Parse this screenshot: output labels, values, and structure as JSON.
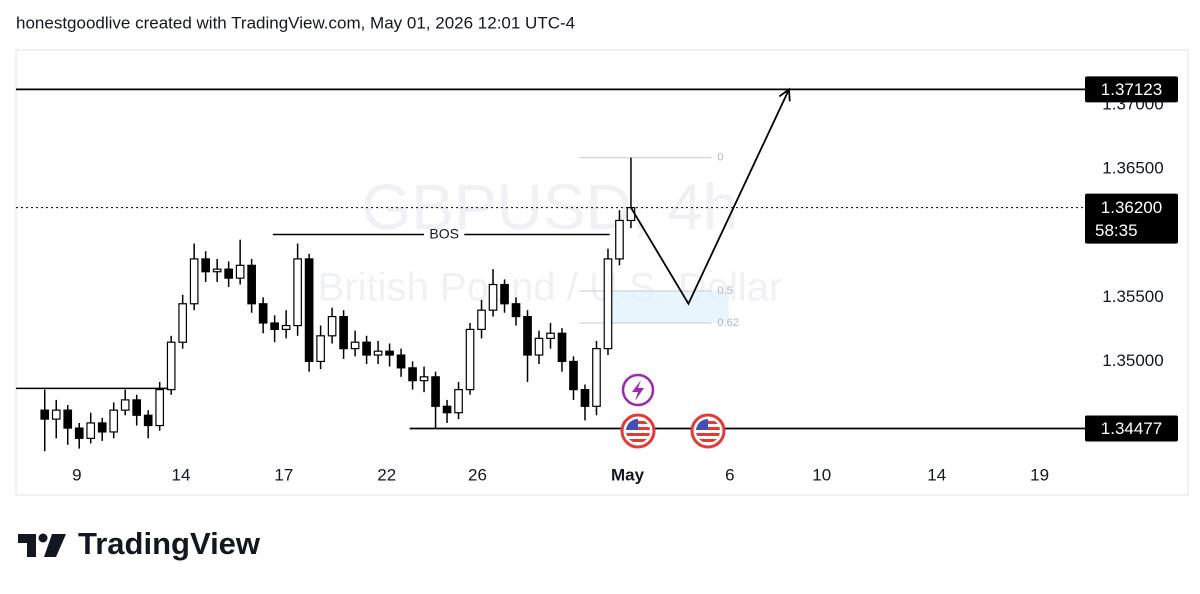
{
  "header": {
    "text": "honestgoodlive created with TradingView.com, May 01, 2026 12:01 UTC-4"
  },
  "footer": {
    "brand": "TradingView"
  },
  "chart_data": {
    "type": "candlestick",
    "watermark": "GBPUSD, 4h",
    "subtitle": "British Pound / U.S. Dollar",
    "up_color": "#ffffff",
    "down_color": "#000000",
    "border_color": "#000000",
    "xlim": [
      0,
      186
    ],
    "xticks": [
      {
        "value": 10.6,
        "label": "9"
      },
      {
        "value": 28.7,
        "label": "14"
      },
      {
        "value": 46.6,
        "label": "17"
      },
      {
        "value": 64.5,
        "label": "22"
      },
      {
        "value": 80.3,
        "label": "26"
      },
      {
        "value": 106.4,
        "label": "May"
      },
      {
        "value": 124.2,
        "label": "6"
      },
      {
        "value": 140.2,
        "label": "10"
      },
      {
        "value": 160.2,
        "label": "14"
      },
      {
        "value": 178.1,
        "label": "19"
      }
    ],
    "ylim": [
      1.3427,
      1.3743
    ],
    "yticks": [
      {
        "value": 1.37,
        "label": "1.37000"
      },
      {
        "value": 1.365,
        "label": "1.36500"
      },
      {
        "value": 1.355,
        "label": "1.35500"
      },
      {
        "value": 1.35,
        "label": "1.35000"
      }
    ],
    "x": [
      5,
      7,
      9,
      11,
      13,
      15,
      17,
      19,
      21,
      23,
      25,
      27,
      29,
      31,
      33,
      35,
      37,
      39,
      41,
      43,
      45,
      47,
      49,
      51,
      53,
      55,
      57,
      59,
      61,
      63,
      65,
      67,
      69,
      71,
      73,
      75,
      77,
      79,
      81,
      83,
      85,
      87,
      89,
      91,
      93,
      95,
      97,
      99,
      101,
      103,
      105,
      107
    ],
    "open": [
      1.3462,
      1.3455,
      1.3462,
      1.3448,
      1.344,
      1.3452,
      1.3445,
      1.3462,
      1.347,
      1.3458,
      1.345,
      1.3478,
      1.3515,
      1.3545,
      1.358,
      1.357,
      1.3572,
      1.3565,
      1.3575,
      1.3545,
      1.353,
      1.3525,
      1.3528,
      1.358,
      1.35,
      1.352,
      1.3535,
      1.351,
      1.3515,
      1.3505,
      1.3508,
      1.3505,
      1.3495,
      1.3485,
      1.3488,
      1.3465,
      1.346,
      1.3478,
      1.3525,
      1.354,
      1.356,
      1.3545,
      1.3535,
      1.3505,
      1.3518,
      1.3522,
      1.35,
      1.3478,
      1.3465,
      1.351,
      1.358,
      1.361
    ],
    "high": [
      1.3478,
      1.347,
      1.3466,
      1.3452,
      1.346,
      1.3456,
      1.3468,
      1.3478,
      1.3474,
      1.3462,
      1.3484,
      1.352,
      1.3552,
      1.3592,
      1.3586,
      1.358,
      1.3578,
      1.3595,
      1.358,
      1.355,
      1.3536,
      1.354,
      1.3592,
      1.3584,
      1.3528,
      1.3542,
      1.354,
      1.3524,
      1.352,
      1.3516,
      1.3514,
      1.351,
      1.35,
      1.3496,
      1.3492,
      1.347,
      1.3484,
      1.353,
      1.3548,
      1.3572,
      1.3564,
      1.355,
      1.354,
      1.3524,
      1.353,
      1.3526,
      1.3504,
      1.3482,
      1.3516,
      1.3588,
      1.3618,
      1.3659
    ],
    "low": [
      1.343,
      1.344,
      1.3435,
      1.3432,
      1.3436,
      1.3438,
      1.344,
      1.3458,
      1.345,
      1.344,
      1.3446,
      1.3474,
      1.351,
      1.354,
      1.3562,
      1.3562,
      1.3558,
      1.356,
      1.3538,
      1.3522,
      1.3515,
      1.3518,
      1.352,
      1.3492,
      1.3494,
      1.3514,
      1.3502,
      1.3504,
      1.3498,
      1.3498,
      1.3496,
      1.3488,
      1.3478,
      1.3476,
      1.3448,
      1.3452,
      1.3455,
      1.3474,
      1.3518,
      1.3535,
      1.3538,
      1.3528,
      1.3484,
      1.3498,
      1.351,
      1.3492,
      1.347,
      1.3454,
      1.3458,
      1.3505,
      1.3575,
      1.3604
    ],
    "close": [
      1.3455,
      1.3462,
      1.3448,
      1.344,
      1.3452,
      1.3445,
      1.3462,
      1.347,
      1.3458,
      1.345,
      1.3478,
      1.3515,
      1.3545,
      1.358,
      1.357,
      1.3572,
      1.3565,
      1.3575,
      1.3545,
      1.353,
      1.3525,
      1.3528,
      1.358,
      1.35,
      1.352,
      1.3535,
      1.351,
      1.3515,
      1.3505,
      1.3508,
      1.3505,
      1.3495,
      1.3485,
      1.3488,
      1.3465,
      1.346,
      1.3478,
      1.3525,
      1.354,
      1.356,
      1.3545,
      1.3535,
      1.3505,
      1.3518,
      1.3522,
      1.35,
      1.3478,
      1.3465,
      1.351,
      1.358,
      1.361,
      1.362
    ],
    "levels": [
      1.37123,
      1.34477
    ],
    "last_price": {
      "value": 1.362,
      "label": "1.36200"
    },
    "countdown": "58:35",
    "support": 1.3479,
    "bos": {
      "value": 1.3599,
      "label": "BOS"
    },
    "fib": [
      {
        "value": 1.3659,
        "label": "0"
      },
      {
        "value": 1.3555,
        "label": "0.5"
      },
      {
        "value": 1.353,
        "label": "0.62"
      }
    ],
    "projection": {
      "x": [
        107,
        117,
        134.5
      ],
      "values": [
        1.362,
        1.3545,
        1.37123
      ]
    }
  }
}
